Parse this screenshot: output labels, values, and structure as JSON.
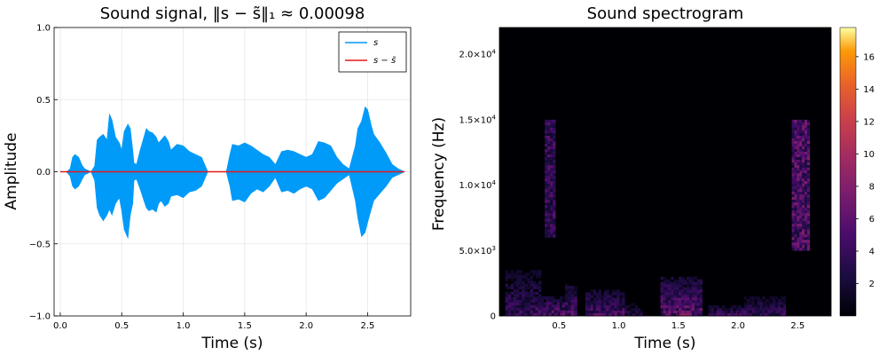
{
  "chart_data": [
    {
      "type": "line",
      "title": "Sound signal, ‖s − s̃‖₁ ≈ 0.00098",
      "xlabel": "Time (s)",
      "ylabel": "Amplitude",
      "xlim": [
        -0.05,
        2.85
      ],
      "ylim": [
        -1.0,
        1.0
      ],
      "xticks": [
        0.0,
        0.5,
        1.0,
        1.5,
        2.0,
        2.5
      ],
      "xtick_labels": [
        "0.0",
        "0.5",
        "1.0",
        "1.5",
        "2.0",
        "2.5"
      ],
      "yticks": [
        -1.0,
        -0.5,
        0.0,
        0.5,
        1.0
      ],
      "ytick_labels": [
        "−1.0",
        "−0.5",
        "0.0",
        "0.5",
        "1.0"
      ],
      "grid": true,
      "legend_position": "top-right",
      "series": [
        {
          "name": "s",
          "color": "#009af9",
          "style": "waveform-envelope",
          "x": [
            0.0,
            0.05,
            0.08,
            0.1,
            0.12,
            0.15,
            0.18,
            0.2,
            0.25,
            0.28,
            0.3,
            0.32,
            0.35,
            0.38,
            0.4,
            0.42,
            0.45,
            0.48,
            0.5,
            0.52,
            0.55,
            0.57,
            0.59,
            0.6,
            0.62,
            0.65,
            0.68,
            0.7,
            0.72,
            0.75,
            0.78,
            0.8,
            0.82,
            0.85,
            0.88,
            0.9,
            0.95,
            1.0,
            1.05,
            1.1,
            1.15,
            1.2,
            1.25,
            1.3,
            1.35,
            1.38,
            1.4,
            1.45,
            1.5,
            1.55,
            1.6,
            1.65,
            1.7,
            1.75,
            1.8,
            1.85,
            1.9,
            1.95,
            2.0,
            2.05,
            2.1,
            2.15,
            2.2,
            2.25,
            2.3,
            2.35,
            2.4,
            2.42,
            2.45,
            2.48,
            2.5,
            2.53,
            2.55,
            2.6,
            2.65,
            2.7,
            2.75,
            2.8
          ],
          "upper": [
            0.0,
            0.0,
            0.02,
            0.1,
            0.12,
            0.1,
            0.04,
            0.02,
            0.0,
            0.04,
            0.22,
            0.24,
            0.26,
            0.22,
            0.4,
            0.36,
            0.24,
            0.2,
            0.15,
            0.28,
            0.33,
            0.3,
            0.15,
            0.06,
            0.05,
            0.15,
            0.24,
            0.3,
            0.28,
            0.27,
            0.24,
            0.2,
            0.22,
            0.25,
            0.21,
            0.15,
            0.19,
            0.18,
            0.14,
            0.12,
            0.1,
            0.0,
            0.0,
            0.0,
            0.0,
            0.12,
            0.19,
            0.18,
            0.2,
            0.18,
            0.15,
            0.12,
            0.1,
            0.05,
            0.14,
            0.15,
            0.14,
            0.12,
            0.1,
            0.12,
            0.21,
            0.2,
            0.18,
            0.1,
            0.05,
            0.02,
            0.18,
            0.3,
            0.35,
            0.45,
            0.43,
            0.32,
            0.26,
            0.2,
            0.13,
            0.05,
            0.02,
            0.0
          ],
          "lower": [
            0.0,
            0.0,
            -0.03,
            -0.1,
            -0.12,
            -0.1,
            -0.05,
            -0.02,
            0.0,
            -0.06,
            -0.25,
            -0.3,
            -0.34,
            -0.3,
            -0.26,
            -0.3,
            -0.22,
            -0.18,
            -0.27,
            -0.4,
            -0.46,
            -0.3,
            -0.22,
            -0.06,
            -0.05,
            -0.12,
            -0.2,
            -0.25,
            -0.27,
            -0.26,
            -0.28,
            -0.22,
            -0.2,
            -0.24,
            -0.22,
            -0.17,
            -0.16,
            -0.18,
            -0.14,
            -0.13,
            -0.1,
            0.0,
            0.0,
            0.0,
            0.0,
            -0.1,
            -0.2,
            -0.19,
            -0.21,
            -0.15,
            -0.12,
            -0.14,
            -0.1,
            -0.04,
            -0.14,
            -0.13,
            -0.15,
            -0.12,
            -0.1,
            -0.12,
            -0.2,
            -0.18,
            -0.13,
            -0.08,
            -0.05,
            -0.02,
            -0.2,
            -0.32,
            -0.45,
            -0.42,
            -0.35,
            -0.26,
            -0.2,
            -0.15,
            -0.1,
            -0.04,
            -0.02,
            0.0
          ]
        },
        {
          "name": "s − s̃",
          "color": "#e31a1c",
          "x": [
            0.0,
            2.8
          ],
          "y": [
            0.0,
            0.0
          ]
        }
      ]
    },
    {
      "type": "heatmap",
      "title": "Sound spectrogram",
      "xlabel": "Time (s)",
      "ylabel": "Frequency (Hz)",
      "xlim": [
        0.0,
        2.78
      ],
      "ylim": [
        0,
        22050
      ],
      "xticks": [
        0.5,
        1.0,
        1.5,
        2.0,
        2.5
      ],
      "xtick_labels": [
        "0.5",
        "1.0",
        "1.5",
        "2.0",
        "2.5"
      ],
      "yticks": [
        0,
        5000,
        10000,
        15000,
        20000
      ],
      "ytick_labels": [
        {
          "mantissa": "0",
          "exponent": ""
        },
        {
          "mantissa": "5.0×10",
          "exponent": "3"
        },
        {
          "mantissa": "1.0×10",
          "exponent": "4"
        },
        {
          "mantissa": "1.5×10",
          "exponent": "4"
        },
        {
          "mantissa": "2.0×10",
          "exponent": "4"
        }
      ],
      "colorbar": {
        "colormap": "inferno",
        "range": [
          0,
          17.8
        ],
        "ticks": [
          2,
          4,
          6,
          8,
          10,
          12,
          14,
          16
        ],
        "tick_labels": [
          "2",
          "4",
          "6",
          "8",
          "10",
          "12",
          "14",
          "16"
        ]
      },
      "energy_regions": [
        {
          "t_start": 0.05,
          "t_end": 0.35,
          "f_low": 0,
          "f_high": 3500,
          "intensity": 4
        },
        {
          "t_start": 0.3,
          "t_end": 0.55,
          "f_low": 0,
          "f_high": 1500,
          "intensity": 6
        },
        {
          "t_start": 0.38,
          "t_end": 0.47,
          "f_low": 6000,
          "f_high": 15000,
          "intensity": 6
        },
        {
          "t_start": 0.55,
          "t_end": 0.65,
          "f_low": 0,
          "f_high": 2500,
          "intensity": 5
        },
        {
          "t_start": 0.72,
          "t_end": 1.05,
          "f_low": 0,
          "f_high": 2000,
          "intensity": 5
        },
        {
          "t_start": 1.05,
          "t_end": 1.2,
          "f_low": 0,
          "f_high": 1000,
          "intensity": 3
        },
        {
          "t_start": 1.35,
          "t_end": 1.7,
          "f_low": 0,
          "f_high": 3000,
          "intensity": 6
        },
        {
          "t_start": 1.75,
          "t_end": 2.05,
          "f_low": 0,
          "f_high": 800,
          "intensity": 5
        },
        {
          "t_start": 2.05,
          "t_end": 2.4,
          "f_low": 0,
          "f_high": 1500,
          "intensity": 4
        },
        {
          "t_start": 2.45,
          "t_end": 2.6,
          "f_low": 5000,
          "f_high": 15000,
          "intensity": 8
        }
      ]
    }
  ]
}
